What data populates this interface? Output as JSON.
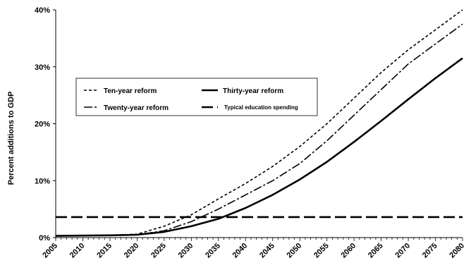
{
  "chart_data": {
    "type": "line",
    "title": "",
    "xlabel": "",
    "ylabel": "Percent additions to GDP",
    "xlim": [
      2005,
      2080
    ],
    "ylim": [
      0,
      40
    ],
    "x_ticks": [
      "2005",
      "2010",
      "2015",
      "2020",
      "2025",
      "2030",
      "2035",
      "2040",
      "2045",
      "2050",
      "2055",
      "2060",
      "2065",
      "2070",
      "2075",
      "2080"
    ],
    "y_ticks": [
      "0%",
      "10%",
      "20%",
      "30%",
      "40%"
    ],
    "legend_position": "middle-left",
    "series": [
      {
        "name": "Ten-year reform",
        "dash": "short",
        "x": [
          2005,
          2015,
          2020,
          2025,
          2030,
          2035,
          2040,
          2045,
          2050,
          2055,
          2060,
          2065,
          2070,
          2075,
          2080
        ],
        "y": [
          0.3,
          0.4,
          0.6,
          2.0,
          4.0,
          6.8,
          9.5,
          12.5,
          16.0,
          20.0,
          24.5,
          29.0,
          33.0,
          36.5,
          40.0
        ]
      },
      {
        "name": "Twenty-year reform",
        "dash": "dashdot",
        "x": [
          2005,
          2015,
          2020,
          2025,
          2030,
          2035,
          2040,
          2045,
          2050,
          2055,
          2060,
          2065,
          2070,
          2075,
          2080
        ],
        "y": [
          0.3,
          0.4,
          0.5,
          1.2,
          2.8,
          5.0,
          7.5,
          10.0,
          13.0,
          17.0,
          21.5,
          26.0,
          30.5,
          34.0,
          37.5
        ]
      },
      {
        "name": "Thirty-year reform",
        "dash": "solid",
        "x": [
          2005,
          2015,
          2020,
          2025,
          2030,
          2035,
          2040,
          2045,
          2050,
          2055,
          2060,
          2065,
          2070,
          2075,
          2080
        ],
        "y": [
          0.3,
          0.4,
          0.5,
          1.0,
          2.0,
          3.3,
          5.2,
          7.5,
          10.2,
          13.3,
          16.8,
          20.5,
          24.3,
          28.0,
          31.5
        ]
      },
      {
        "name": "Typical education spending",
        "dash": "long",
        "x": [
          2005,
          2080
        ],
        "y": [
          3.6,
          3.6
        ]
      }
    ]
  }
}
